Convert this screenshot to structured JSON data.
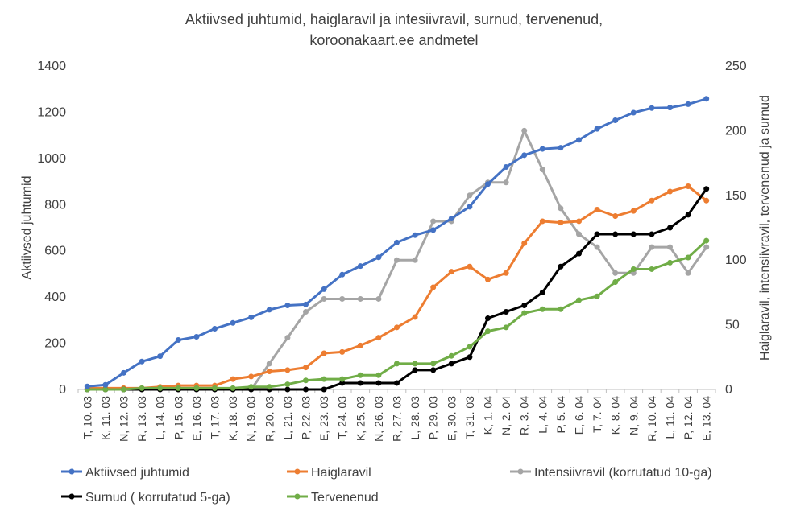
{
  "chart_data": {
    "type": "line",
    "title_line1": "Aktiivsed juhtumid, haiglaravil ja intesiivravil, surnud, tervenenud,",
    "title_line2": "koroonakaart.ee  andmetel",
    "ylabel_left": "Aktiivsed juhtumid",
    "ylabel_right": "Haiglaravil, intensiivravil, tervenenud ja surnud",
    "ylim_left": [
      0,
      1400
    ],
    "ylim_right": [
      0,
      250
    ],
    "yticks_left": [
      "0",
      "200",
      "400",
      "600",
      "800",
      "1000",
      "1200",
      "1400"
    ],
    "yticks_right": [
      "0",
      "50",
      "100",
      "150",
      "200",
      "250"
    ],
    "categories": [
      "T, 10. 03",
      "K, 11. 03",
      "N, 12. 03",
      "R, 13. 03",
      "L, 14. 03",
      "P, 15. 03",
      "E, 16. 03",
      "T, 17. 03",
      "K, 18. 03",
      "N, 19. 03",
      "R, 20. 03",
      "L, 21. 03",
      "P, 22. 03",
      "E, 23. 03",
      "T, 24. 03",
      "K, 25. 03",
      "N, 26. 03",
      "R, 27. 03",
      "L, 28. 03",
      "P, 29. 03",
      "E, 30. 03",
      "T, 31. 03",
      "K, 1. 04",
      "N, 2. 04",
      "R, 3. 04",
      "L, 4. 04",
      "P, 5. 04",
      "E, 6. 04",
      "T, 7. 04",
      "K, 8. 04",
      "N, 9. 04",
      "R, 10. 04",
      "L, 11. 04",
      "P, 12. 04",
      "E, 13. 04"
    ],
    "series": [
      {
        "name": "Aktiivsed juhtumid",
        "axis": "left",
        "color": "#4472C4",
        "values": [
          13,
          20,
          72,
          121,
          144,
          214,
          228,
          263,
          288,
          312,
          345,
          364,
          368,
          434,
          497,
          534,
          572,
          636,
          668,
          690,
          740,
          791,
          889,
          963,
          1014,
          1041,
          1046,
          1080,
          1128,
          1165,
          1198,
          1218,
          1220,
          1235,
          1258
        ]
      },
      {
        "name": "Haiglaravil",
        "axis": "right",
        "color": "#ED7D31",
        "values": [
          1,
          1,
          1,
          1,
          2,
          3,
          3,
          3,
          8,
          10,
          14,
          15,
          17,
          28,
          29,
          34,
          40,
          48,
          56,
          79,
          91,
          95,
          85,
          90,
          113,
          130,
          129,
          130,
          139,
          134,
          138,
          146,
          153,
          157,
          146
        ]
      },
      {
        "name": "Intensiivravil  (korrutatud 10-ga)",
        "axis": "right",
        "color": "#A5A5A5",
        "values": [
          0,
          0,
          0,
          0,
          0,
          0,
          0,
          0,
          0,
          0,
          20,
          40,
          60,
          70,
          70,
          70,
          70,
          100,
          100,
          130,
          130,
          150,
          160,
          160,
          200,
          170,
          140,
          120,
          110,
          90,
          90,
          110,
          110,
          90,
          110
        ]
      },
      {
        "name": "Surnud ( korrutatud 5-ga)",
        "axis": "right",
        "color": "#000000",
        "values": [
          0,
          0,
          0,
          0,
          0,
          0,
          0,
          0,
          0,
          0,
          0,
          0,
          0,
          0,
          5,
          5,
          5,
          5,
          15,
          15,
          20,
          25,
          55,
          60,
          65,
          75,
          95,
          105,
          120,
          120,
          120,
          120,
          125,
          135,
          155
        ]
      },
      {
        "name": "Tervenenud",
        "axis": "right",
        "color": "#70AD47",
        "values": [
          0,
          0,
          0,
          1,
          1,
          1,
          1,
          1,
          1,
          2,
          2,
          4,
          7,
          8,
          8,
          11,
          11,
          20,
          20,
          20,
          26,
          33,
          45,
          48,
          59,
          62,
          62,
          69,
          72,
          83,
          93,
          93,
          98,
          102,
          115
        ]
      }
    ],
    "legend_position": "bottom",
    "grid": false
  }
}
